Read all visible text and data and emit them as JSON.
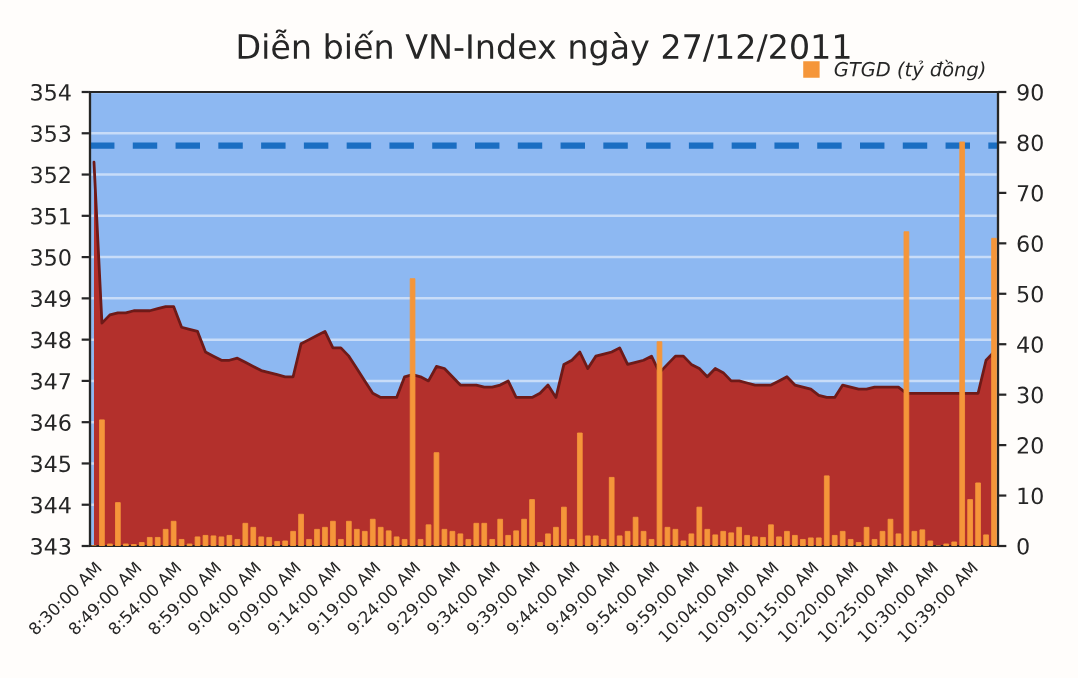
{
  "chart_data": {
    "type": "area",
    "title": "Diễn biến VN-Index ngày 27/12/2011",
    "categories": [
      "8:30:00 AM",
      null,
      null,
      null,
      null,
      "8:49:00 AM",
      null,
      null,
      null,
      null,
      "8:54:00 AM",
      null,
      null,
      null,
      null,
      "8:59:00 AM",
      null,
      null,
      null,
      null,
      "9:04:00 AM",
      null,
      null,
      null,
      null,
      "9:09:00 AM",
      null,
      null,
      null,
      null,
      "9:14:00 AM",
      null,
      null,
      null,
      null,
      "9:19:00 AM",
      null,
      null,
      null,
      null,
      "9:24:00 AM",
      null,
      null,
      null,
      null,
      "9:29:00 AM",
      null,
      null,
      null,
      null,
      "9:34:00 AM",
      null,
      null,
      null,
      null,
      "9:39:00 AM",
      null,
      null,
      null,
      null,
      "9:44:00 AM",
      null,
      null,
      null,
      null,
      "9:49:00 AM",
      null,
      null,
      null,
      null,
      "9:54:00 AM",
      null,
      null,
      null,
      null,
      "9:59:00 AM",
      null,
      null,
      null,
      null,
      "10:04:00 AM",
      null,
      null,
      null,
      null,
      "10:09:00 AM",
      null,
      null,
      null,
      null,
      "10:15:00 AM",
      null,
      null,
      null,
      null,
      "10:20:00 AM",
      null,
      null,
      null,
      null,
      "10:25:00 AM",
      null,
      null,
      null,
      null,
      "10:30:00 AM",
      null,
      null,
      null,
      null,
      "10:39:00 AM",
      null,
      null,
      null
    ],
    "series": [
      {
        "color": "#b3302c",
        "values": [
          352.3,
          348.4,
          348.6,
          348.65,
          348.65,
          348.7,
          348.7,
          348.7,
          348.75,
          348.8,
          348.8,
          348.3,
          348.25,
          348.2,
          347.7,
          347.6,
          347.5,
          347.5,
          347.55,
          347.45,
          347.35,
          347.25,
          347.2,
          347.15,
          347.1,
          347.1,
          347.9,
          348.0,
          348.1,
          348.2,
          347.8,
          347.8,
          347.6,
          347.3,
          347.0,
          346.7,
          346.6,
          346.6,
          346.6,
          347.1,
          347.15,
          347.1,
          347.0,
          347.35,
          347.3,
          347.1,
          346.9,
          346.9,
          346.9,
          346.85,
          346.85,
          346.9,
          347.0,
          346.6,
          346.6,
          346.6,
          346.7,
          346.9,
          346.6,
          347.4,
          347.5,
          347.7,
          347.3,
          347.6,
          347.65,
          347.7,
          347.8,
          347.4,
          347.45,
          347.5,
          347.6,
          347.2,
          347.4,
          347.6,
          347.6,
          347.4,
          347.3,
          347.1,
          347.3,
          347.2,
          347.0,
          347.0,
          346.95,
          346.9,
          346.9,
          346.9,
          347.0,
          347.1,
          346.9,
          346.85,
          346.8,
          346.65,
          346.6,
          346.6,
          346.9,
          346.85,
          346.8,
          346.8,
          346.85,
          346.85,
          346.85,
          346.85,
          346.7,
          346.7,
          346.7,
          346.7,
          346.7,
          346.7,
          346.7,
          346.7,
          346.7,
          346.7,
          347.5,
          347.7
        ]
      },
      {
        "type": "bar",
        "name": "GTGD (tỷ đồng)",
        "axis": "y2",
        "color": "#f5963a",
        "values": [
          0,
          25,
          0.4,
          8.6,
          0.4,
          0.3,
          0.7,
          1.7,
          1.7,
          3.3,
          4.9,
          1.3,
          0.4,
          1.8,
          2.1,
          2,
          1.8,
          2.1,
          1.3,
          4.5,
          3.7,
          1.8,
          1.7,
          0.9,
          1,
          2.9,
          6.3,
          1.3,
          3.3,
          3.7,
          4.9,
          1.3,
          4.9,
          3.3,
          2.9,
          5.3,
          3.7,
          3,
          1.8,
          1.3,
          53,
          1.3,
          4.2,
          18.5,
          3.3,
          2.9,
          2.4,
          1.3,
          4.5,
          4.5,
          1.3,
          5.3,
          2.1,
          3,
          5.3,
          9.2,
          0.7,
          2.4,
          3.7,
          7.7,
          1.3,
          22.4,
          2,
          2,
          1.3,
          13.6,
          2,
          2.9,
          5.7,
          2.9,
          1.3,
          40.5,
          3.7,
          3.3,
          1,
          2.4,
          7.7,
          3.3,
          2.2,
          2.9,
          2.6,
          3.7,
          2.1,
          1.8,
          1.7,
          4.2,
          1.8,
          2.9,
          2.1,
          1.3,
          1.6,
          1.6,
          13.9,
          2.1,
          2.9,
          1.3,
          0.7,
          3.7,
          1.3,
          2.9,
          5.3,
          2.4,
          62.3,
          2.9,
          3.2,
          1,
          0,
          0.4,
          0.8,
          80.1,
          9.2,
          12.5,
          2.2,
          61
        ]
      }
    ],
    "ylim": [
      343,
      354
    ],
    "yticks": [
      343,
      344,
      345,
      346,
      347,
      348,
      349,
      350,
      351,
      352,
      353,
      354
    ],
    "y2lim": [
      0,
      90
    ],
    "y2ticks": [
      0,
      10,
      20,
      30,
      40,
      50,
      60,
      70,
      80,
      90
    ],
    "ref_lines": [
      {
        "axis": "y",
        "value": 352.7,
        "color": "#1b6ec2",
        "line_style": "dashed"
      }
    ],
    "grid": "y",
    "legend": "top right"
  }
}
